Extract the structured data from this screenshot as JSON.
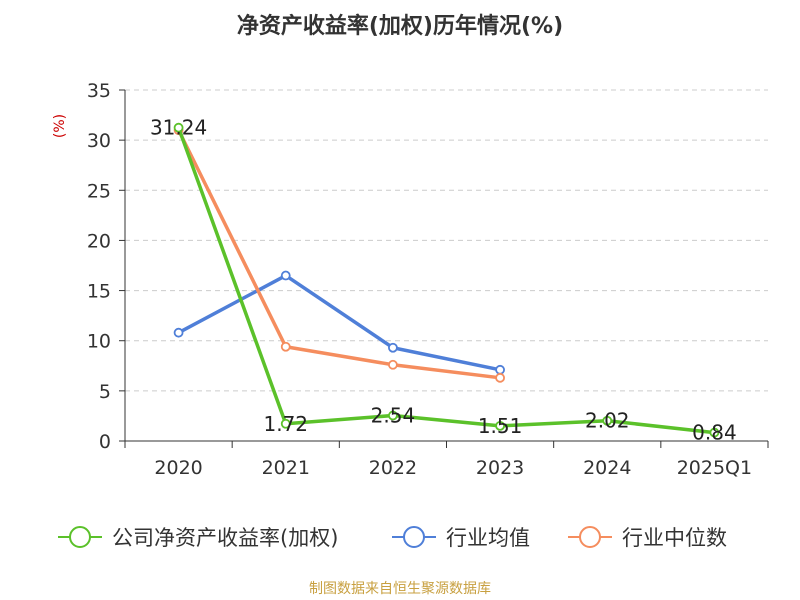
{
  "chart_data": {
    "type": "line",
    "title": "净资产收益率(加权)历年情况(%)",
    "ylabel": "(%)",
    "categories": [
      "2020",
      "2021",
      "2022",
      "2023",
      "2024",
      "2025Q1"
    ],
    "ylim": [
      0,
      35
    ],
    "yticks": [
      "0",
      "5",
      "10",
      "15",
      "20",
      "25",
      "30",
      "35"
    ],
    "grid": true,
    "legend_position": "bottom",
    "series": [
      {
        "name": "公司净资产收益率(加权)",
        "color": "#5bc12a",
        "values": [
          31.24,
          1.72,
          2.54,
          1.51,
          2.02,
          0.84
        ],
        "labels": [
          "31.24",
          "1.72",
          "2.54",
          "1.51",
          "2.02",
          "0.84"
        ]
      },
      {
        "name": "行业均值",
        "color": "#4f7fd8",
        "values": [
          10.8,
          16.5,
          9.3,
          7.1,
          null,
          null
        ]
      },
      {
        "name": "行业中位数",
        "color": "#f58d5e",
        "values": [
          31.0,
          9.4,
          7.6,
          6.3,
          null,
          null
        ]
      }
    ]
  },
  "footer": {
    "source": "制图数据来自恒生聚源数据库"
  }
}
